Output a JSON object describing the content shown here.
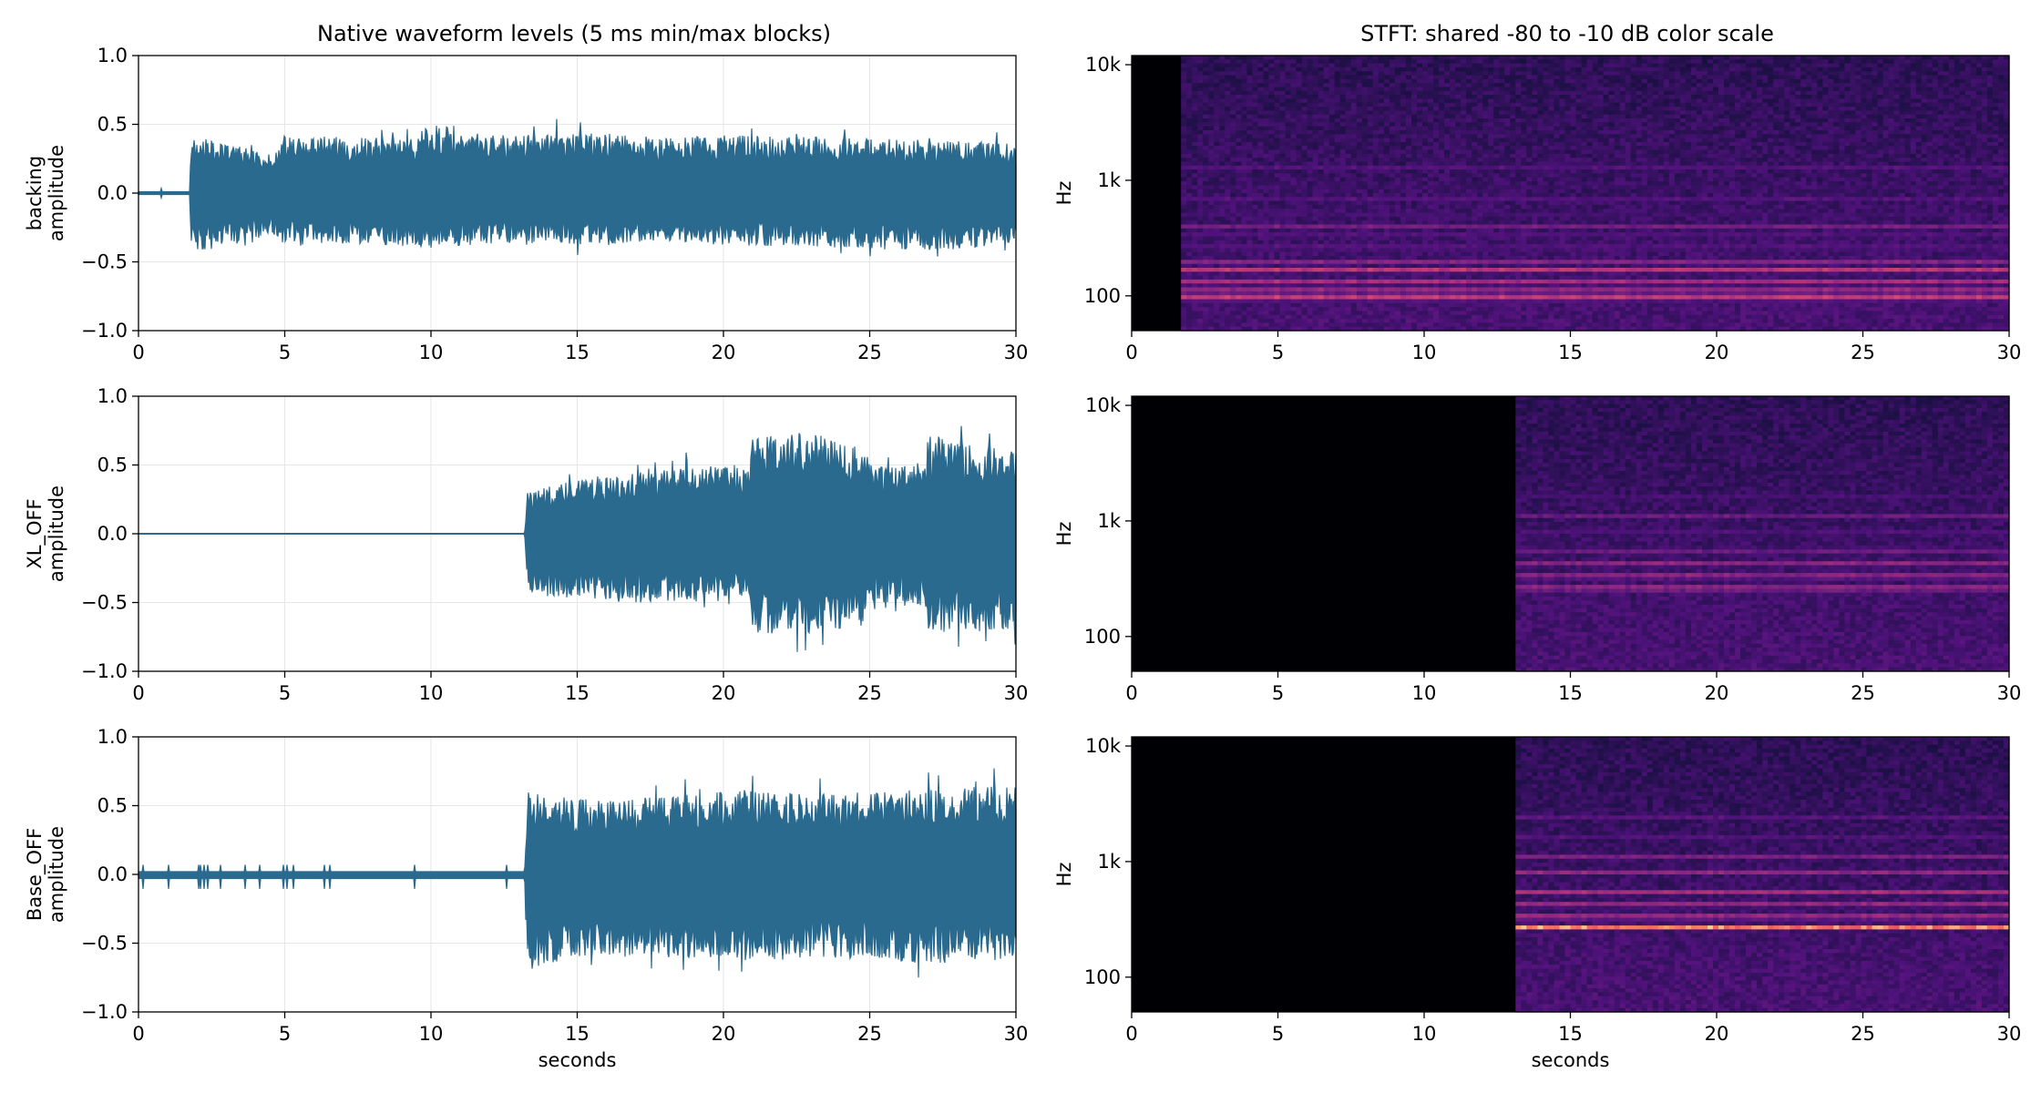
{
  "chart_data": [
    {
      "type": "area",
      "title": "Native waveform levels (5 ms min/max blocks)",
      "ylabel": [
        "backing",
        "amplitude"
      ],
      "xlabel": "",
      "xlim": [
        0,
        30
      ],
      "ylim": [
        -1.0,
        1.0
      ],
      "xticks": [
        "0",
        "5",
        "10",
        "15",
        "20",
        "25",
        "30"
      ],
      "yticks": [
        "1.0",
        "0.5",
        "0.0",
        "−0.5",
        "−1.0"
      ],
      "grid": true,
      "color": "#2b6a8f",
      "onset": 1.75,
      "envelope": {
        "x": [
          0,
          1.75,
          1.8,
          4.6,
          4.8,
          9.5,
          9.8,
          13,
          15,
          18,
          20,
          25,
          28,
          30
        ],
        "upper": [
          0.01,
          0.01,
          0.42,
          0.28,
          0.42,
          0.4,
          0.5,
          0.42,
          0.45,
          0.4,
          0.42,
          0.4,
          0.38,
          0.36
        ],
        "lower": [
          -0.01,
          -0.01,
          -0.45,
          -0.3,
          -0.36,
          -0.38,
          -0.4,
          -0.36,
          -0.38,
          -0.35,
          -0.38,
          -0.4,
          -0.42,
          -0.35
        ]
      }
    },
    {
      "type": "spectrogram",
      "title": "STFT: shared -80 to -10 dB color scale",
      "ylabel": "Hz",
      "xlabel": "",
      "xlim": [
        0,
        30
      ],
      "yscale": "log",
      "ylim": [
        50,
        12000
      ],
      "xticks": [
        "0",
        "5",
        "10",
        "15",
        "20",
        "25",
        "30"
      ],
      "yticks": [
        "10k",
        "1k",
        "100"
      ],
      "onset": 1.75,
      "bands": [
        {
          "hz": 95,
          "level": 0.95
        },
        {
          "hz": 110,
          "level": 0.88
        },
        {
          "hz": 130,
          "level": 0.8
        },
        {
          "hz": 165,
          "level": 0.85
        },
        {
          "hz": 200,
          "level": 0.6
        },
        {
          "hz": 260,
          "level": 0.55
        },
        {
          "hz": 330,
          "level": 0.5
        },
        {
          "hz": 400,
          "level": 0.45
        },
        {
          "hz": 520,
          "level": 0.42
        },
        {
          "hz": 700,
          "level": 0.4
        },
        {
          "hz": 900,
          "level": 0.38
        },
        {
          "hz": 1300,
          "level": 0.35
        }
      ]
    },
    {
      "type": "area",
      "title": "",
      "ylabel": [
        "XL_OFF",
        "amplitude"
      ],
      "xlabel": "",
      "xlim": [
        0,
        30
      ],
      "ylim": [
        -1.0,
        1.0
      ],
      "xticks": [
        "0",
        "5",
        "10",
        "15",
        "20",
        "25",
        "30"
      ],
      "yticks": [
        "1.0",
        "0.5",
        "0.0",
        "−0.5",
        "−1.0"
      ],
      "grid": true,
      "color": "#2b6a8f",
      "onset": 13.2,
      "envelope": {
        "x": [
          0,
          13.2,
          13.3,
          15,
          17,
          20,
          20.9,
          21.0,
          23,
          24.9,
          25.0,
          26.9,
          27.0,
          30
        ],
        "upper": [
          0.0,
          0.0,
          0.3,
          0.4,
          0.45,
          0.5,
          0.5,
          0.7,
          0.75,
          0.62,
          0.5,
          0.5,
          0.72,
          0.6
        ],
        "lower": [
          0.0,
          0.0,
          -0.42,
          -0.48,
          -0.5,
          -0.5,
          -0.52,
          -0.72,
          -0.75,
          -0.65,
          -0.55,
          -0.55,
          -0.72,
          -0.7
        ]
      }
    },
    {
      "type": "spectrogram",
      "title": "",
      "ylabel": "Hz",
      "xlabel": "",
      "xlim": [
        0,
        30
      ],
      "yscale": "log",
      "ylim": [
        50,
        12000
      ],
      "xticks": [
        "0",
        "5",
        "10",
        "15",
        "20",
        "25",
        "30"
      ],
      "yticks": [
        "10k",
        "1k",
        "100"
      ],
      "onset": 13.2,
      "bands": [
        {
          "hz": 260,
          "level": 0.85
        },
        {
          "hz": 330,
          "level": 0.78
        },
        {
          "hz": 420,
          "level": 0.7
        },
        {
          "hz": 560,
          "level": 0.6
        },
        {
          "hz": 780,
          "level": 0.5
        },
        {
          "hz": 1100,
          "level": 0.4
        },
        {
          "hz": 1600,
          "level": 0.35
        },
        {
          "hz": 2300,
          "level": 0.3
        }
      ]
    },
    {
      "type": "area",
      "title": "",
      "ylabel": [
        "Base_OFF",
        "amplitude"
      ],
      "xlabel": "seconds",
      "xlim": [
        0,
        30
      ],
      "ylim": [
        -1.0,
        1.0
      ],
      "xticks": [
        "0",
        "5",
        "10",
        "15",
        "20",
        "25",
        "30"
      ],
      "yticks": [
        "1.0",
        "0.5",
        "0.0",
        "−0.5",
        "−1.0"
      ],
      "grid": true,
      "color": "#2b6a8f",
      "onset": 13.2,
      "envelope": {
        "x": [
          0,
          13.2,
          13.3,
          15,
          17,
          20,
          21,
          23,
          25,
          27,
          30
        ],
        "upper": [
          0.02,
          0.02,
          0.6,
          0.55,
          0.55,
          0.6,
          0.62,
          0.58,
          0.6,
          0.62,
          0.65
        ],
        "lower": [
          -0.03,
          -0.03,
          -0.7,
          -0.6,
          -0.6,
          -0.62,
          -0.65,
          -0.6,
          -0.62,
          -0.65,
          -0.62
        ]
      }
    },
    {
      "type": "spectrogram",
      "title": "",
      "ylabel": "Hz",
      "xlabel": "seconds",
      "xlim": [
        0,
        30
      ],
      "yscale": "log",
      "ylim": [
        50,
        12000
      ],
      "xticks": [
        "0",
        "5",
        "10",
        "15",
        "20",
        "25",
        "30"
      ],
      "yticks": [
        "10k",
        "1k",
        "100"
      ],
      "onset": 13.2,
      "bands": [
        {
          "hz": 270,
          "level": 0.95
        },
        {
          "hz": 330,
          "level": 0.85
        },
        {
          "hz": 420,
          "level": 0.75
        },
        {
          "hz": 540,
          "level": 0.65
        },
        {
          "hz": 800,
          "level": 0.55
        },
        {
          "hz": 1100,
          "level": 0.45
        },
        {
          "hz": 1600,
          "level": 0.4
        },
        {
          "hz": 2400,
          "level": 0.35
        }
      ]
    }
  ]
}
